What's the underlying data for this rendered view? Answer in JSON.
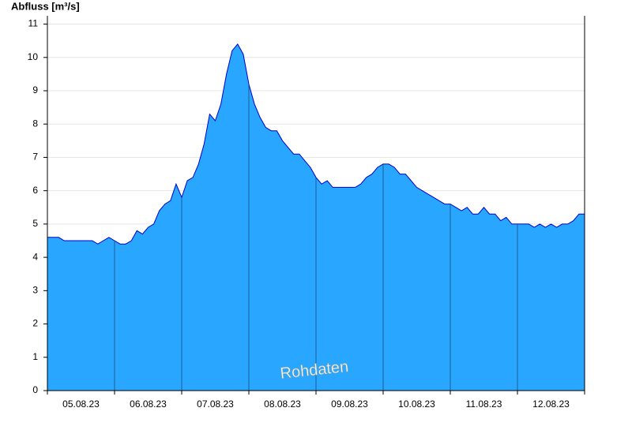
{
  "chart_data": {
    "type": "area",
    "title": "Abfluss [m³/s]",
    "annotation": "Rohdaten",
    "categories": [
      "05.08.23",
      "06.08.23",
      "07.08.23",
      "08.08.23",
      "09.08.23",
      "10.08.23",
      "11.08.23",
      "12.08.23"
    ],
    "series": [
      {
        "name": "Abfluss",
        "color": "#29a6ff",
        "line_color": "#0000cc",
        "values": [
          [
            4.6,
            4.6,
            4.6,
            4.5,
            4.5,
            4.5,
            4.5,
            4.5,
            4.5,
            4.4,
            4.5,
            4.6
          ],
          [
            4.5,
            4.4,
            4.4,
            4.5,
            4.8,
            4.7,
            4.9,
            5.0,
            5.4,
            5.6,
            5.7,
            6.2
          ],
          [
            5.8,
            6.3,
            6.4,
            6.8,
            7.4,
            8.3,
            8.1,
            8.6,
            9.5,
            10.2,
            10.4,
            10.1
          ],
          [
            9.2,
            8.6,
            8.2,
            7.9,
            7.8,
            7.8,
            7.5,
            7.3,
            7.1,
            7.1,
            6.9,
            6.7
          ],
          [
            6.4,
            6.2,
            6.3,
            6.1,
            6.1,
            6.1,
            6.1,
            6.1,
            6.2,
            6.4,
            6.5,
            6.7
          ],
          [
            6.8,
            6.8,
            6.7,
            6.5,
            6.5,
            6.3,
            6.1,
            6.0,
            5.9,
            5.8,
            5.7,
            5.6
          ],
          [
            5.6,
            5.5,
            5.4,
            5.5,
            5.3,
            5.3,
            5.5,
            5.3,
            5.3,
            5.1,
            5.2,
            5.0
          ],
          [
            5.0,
            5.0,
            5.0,
            4.9,
            5.0,
            4.9,
            5.0,
            4.9,
            5.0,
            5.0,
            5.1,
            5.3
          ]
        ]
      }
    ],
    "ylim": [
      0,
      11.25
    ],
    "yticks": [
      0,
      1,
      2,
      3,
      4,
      5,
      6,
      7,
      8,
      9,
      10,
      11
    ],
    "grid": true
  }
}
